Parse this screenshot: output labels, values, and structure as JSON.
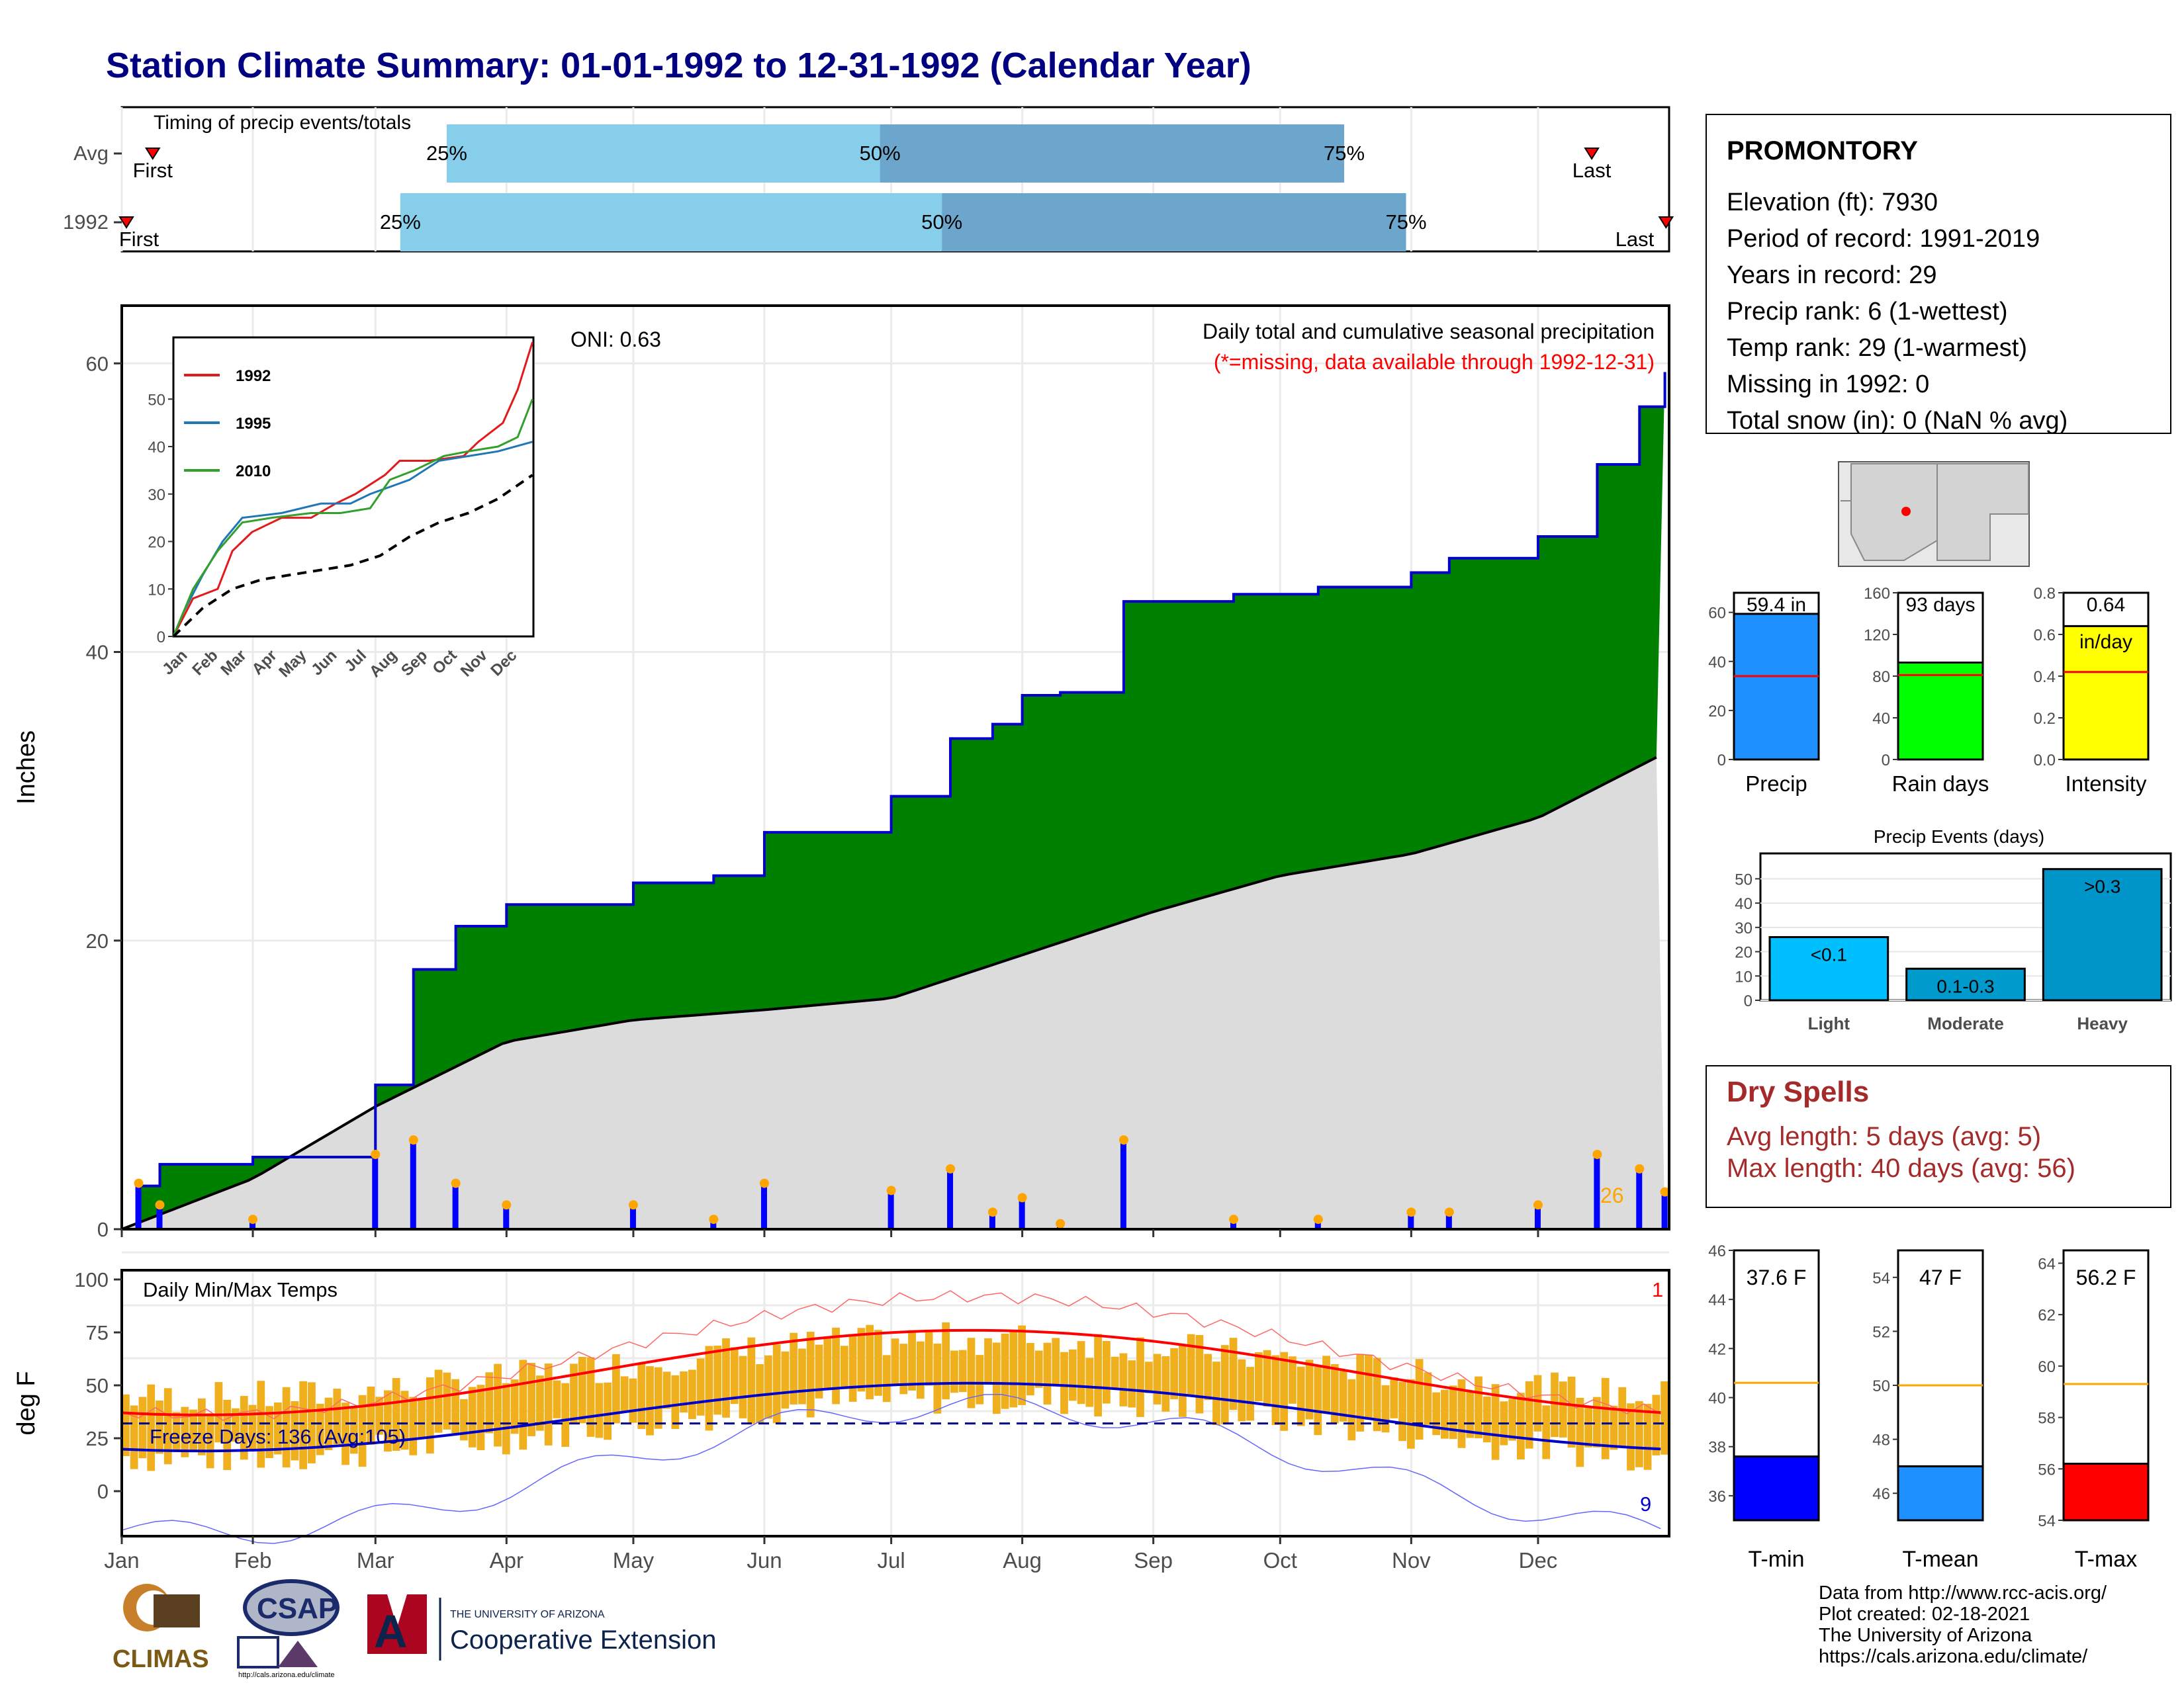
{
  "title": "Station Climate Summary: 01-01-1992 to 12-31-1992 (Calendar Year)",
  "timing": {
    "label": "Timing of precip events/totals",
    "rows": [
      {
        "name": "Avg",
        "first_label": "First",
        "last_label": "Last",
        "p25_label": "25%",
        "p50_label": "50%",
        "p75_label": "75%",
        "p25": 0.21,
        "p50": 0.49,
        "p75": 0.79,
        "first": 0.02,
        "last": 0.95
      },
      {
        "name": "1992",
        "first_label": "First",
        "last_label": "Last",
        "p25_label": "25%",
        "p50_label": "50%",
        "p75_label": "75%",
        "p25": 0.18,
        "p50": 0.53,
        "p75": 0.83,
        "first": 0.003,
        "last": 0.998
      }
    ]
  },
  "main_chart": {
    "ylabel": "Inches",
    "yticks": [
      "0",
      "20",
      "40",
      "60"
    ],
    "ylim": [
      0,
      64
    ],
    "oni": "ONI: 0.63",
    "heading": "Daily total and cumulative seasonal precipitation",
    "note": "(*=missing, data available through 1992-12-31)",
    "max_label": "26",
    "xticks": [
      "Jan",
      "Feb",
      "Mar",
      "Apr",
      "May",
      "Jun",
      "Jul",
      "Aug",
      "Sep",
      "Oct",
      "Nov",
      "Dec"
    ],
    "colors": {
      "cumulative_fill": "#008000",
      "cumulative_line": "#0000cd",
      "average_fill": "#dcdcdc",
      "daily_bars": "#0000ff",
      "marker": "#ffa500"
    }
  },
  "inset_chart": {
    "legend": [
      "1992",
      "1995",
      "2010"
    ],
    "yticks": [
      "0",
      "10",
      "20",
      "30",
      "40",
      "50"
    ],
    "xticks": [
      "Jan",
      "Feb",
      "Mar",
      "Apr",
      "May",
      "Jun",
      "Jul",
      "Aug",
      "Sep",
      "Oct",
      "Nov",
      "Dec"
    ],
    "colors": [
      "#e31a1c",
      "#1f78b4",
      "#33a02c"
    ]
  },
  "temp_chart": {
    "ylabel": "deg F",
    "yticks": [
      "0",
      "25",
      "50",
      "75",
      "100"
    ],
    "title": "Daily Min/Max Temps",
    "freeze_label": "Freeze Days: 136 (Avg:105)",
    "record_high_count": "1",
    "record_low_count": "9",
    "xticks": [
      "Jan",
      "Feb",
      "Mar",
      "Apr",
      "May",
      "Jun",
      "Jul",
      "Aug",
      "Sep",
      "Oct",
      "Nov",
      "Dec"
    ]
  },
  "station": {
    "name": "PROMONTORY",
    "lines": [
      "Elevation (ft): 7930",
      "Period of record: 1991-2019",
      "Years in record: 29",
      "Precip rank: 6 (1-wettest)",
      "Temp rank: 29 (1-warmest)",
      "Missing in 1992: 0",
      "Total snow (in): 0 (NaN % avg)"
    ]
  },
  "summary_bars": [
    {
      "label": "Precip",
      "value_label": "59.4 in",
      "value": 59.4,
      "avg": 34,
      "max": 68,
      "ticks": [
        "0",
        "20",
        "40",
        "60"
      ],
      "tick_values": [
        0,
        20,
        40,
        60
      ],
      "color": "#1e90ff"
    },
    {
      "label": "Rain days",
      "value_label": "93 days",
      "value": 93,
      "avg": 81,
      "max": 160,
      "ticks": [
        "0",
        "40",
        "80",
        "120",
        "160"
      ],
      "tick_values": [
        0,
        40,
        80,
        120,
        160
      ],
      "color": "#00ff00"
    },
    {
      "label": "Intensity",
      "value_label": "0.64",
      "unit_label": "in/day",
      "value": 0.64,
      "avg": 0.42,
      "max": 0.8,
      "ticks": [
        "0.0",
        "0.2",
        "0.4",
        "0.6",
        "0.8"
      ],
      "tick_values": [
        0,
        0.2,
        0.4,
        0.6,
        0.8
      ],
      "color": "#ffff00"
    }
  ],
  "precip_events": {
    "title": "Precip Events (days)",
    "yticks": [
      "0",
      "10",
      "20",
      "30",
      "40",
      "50"
    ],
    "ytick_values": [
      0,
      10,
      20,
      30,
      40,
      50
    ],
    "max": 55,
    "categories": [
      "Light",
      "Moderate",
      "Heavy"
    ],
    "bar_labels": [
      "<0.1",
      "0.1-0.3",
      ">0.3"
    ],
    "values": [
      26,
      13,
      54
    ],
    "colors": [
      "#00bfff",
      "#009acd",
      "#0095c8"
    ]
  },
  "dry_spells": {
    "title": "Dry Spells",
    "avg_line": "Avg length: 5 days (avg: 5)",
    "max_line": "Max length: 40 days (avg: 56)"
  },
  "temp_bars": [
    {
      "label": "T-min",
      "value_label": "37.6 F",
      "value": 37.6,
      "avg": 40.6,
      "min": 35,
      "max": 46,
      "ticks": [
        "36",
        "38",
        "40",
        "42",
        "44",
        "46"
      ],
      "tick_values": [
        36,
        38,
        40,
        42,
        44,
        46
      ],
      "color": "#0000ff"
    },
    {
      "label": "T-mean",
      "value_label": "47 F",
      "value": 47,
      "avg": 50,
      "min": 45,
      "max": 55,
      "ticks": [
        "46",
        "48",
        "50",
        "52",
        "54"
      ],
      "tick_values": [
        46,
        48,
        50,
        52,
        54
      ],
      "color": "#1e90ff"
    },
    {
      "label": "T-max",
      "value_label": "56.2 F",
      "value": 56.2,
      "avg": 59.3,
      "min": 54,
      "max": 64.5,
      "ticks": [
        "54",
        "56",
        "58",
        "60",
        "62",
        "64"
      ],
      "tick_values": [
        54,
        56,
        58,
        60,
        62,
        64
      ],
      "color": "#ff0000"
    }
  ],
  "credits": [
    "Data from http://www.rcc-acis.org/",
    "Plot created: 02-18-2021",
    "The University of Arizona",
    "https://cals.arizona.edu/climate/"
  ],
  "logos": {
    "climas": "CLIMAS",
    "csap": "CSAP",
    "csap_url": "http://cals.arizona.edu/climate",
    "ua_small": "THE UNIVERSITY OF ARIZONA",
    "ua_big": "Cooperative Extension"
  },
  "chart_data": [
    {
      "type": "area",
      "title": "Daily total and cumulative seasonal precipitation",
      "ylabel": "Inches",
      "ylim": [
        0,
        64
      ],
      "series": [
        {
          "name": "1992",
          "x": [
            "01-01",
            "01-05",
            "01-10",
            "02-01",
            "03-01",
            "03-10",
            "03-20",
            "04-01",
            "04-20",
            "05-01",
            "05-20",
            "06-01",
            "06-20",
            "07-01",
            "07-15",
            "07-25",
            "08-01",
            "08-10",
            "08-25",
            "09-01",
            "09-20",
            "10-10",
            "11-01",
            "11-10",
            "12-01",
            "12-15",
            "12-25",
            "12-31"
          ],
          "values": [
            0,
            3,
            4.5,
            5,
            10,
            18,
            21,
            22.5,
            22.5,
            24,
            24.5,
            27.5,
            27.5,
            30,
            34,
            35,
            37,
            37.2,
            43.5,
            43.5,
            44,
            44.5,
            45.5,
            46.5,
            48,
            53,
            57,
            59.4
          ]
        },
        {
          "name": "average",
          "x": [
            "01-01",
            "02-01",
            "03-01",
            "04-01",
            "05-01",
            "06-01",
            "07-01",
            "08-01",
            "09-01",
            "10-01",
            "11-01",
            "12-01",
            "12-31"
          ],
          "values": [
            0,
            3.5,
            8.5,
            13,
            14.5,
            15.2,
            16,
            19,
            22,
            24.5,
            26,
            28.5,
            33
          ]
        }
      ]
    },
    {
      "type": "bar",
      "title": "Precip Events (days)",
      "categories": [
        "Light",
        "Moderate",
        "Heavy"
      ],
      "values": [
        26,
        13,
        54
      ]
    }
  ]
}
